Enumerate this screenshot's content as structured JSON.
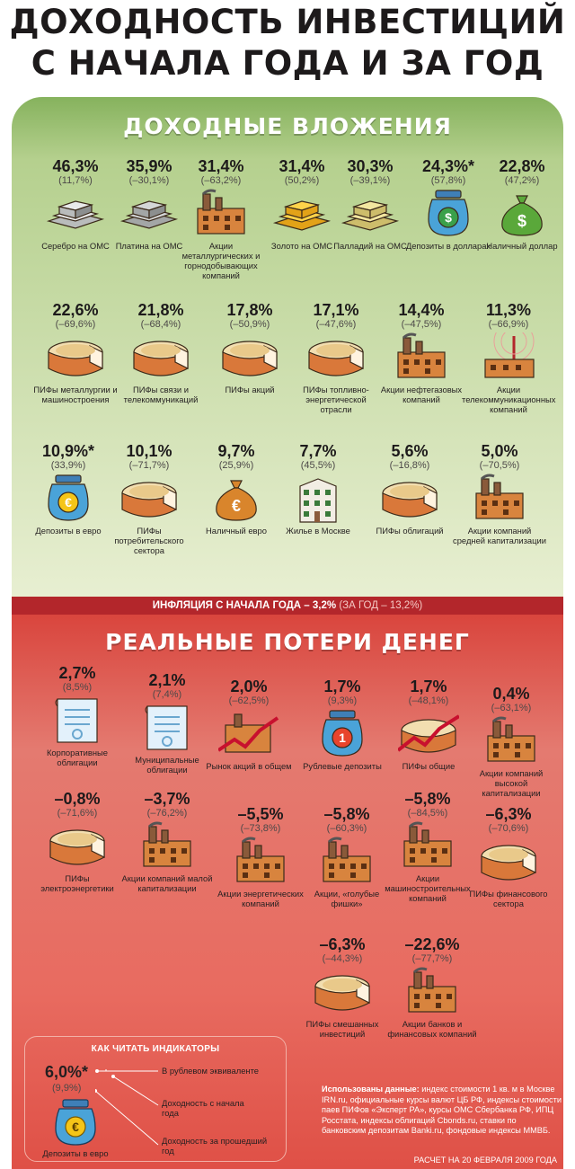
{
  "title_line1": "ДОХОДНОСТЬ ИНВЕСТИЦИЙ",
  "title_line2": "С НАЧАЛА ГОДА И ЗА ГОД",
  "good_section": {
    "title": "ДОХОДНЫЕ ВЛОЖЕНИЯ",
    "items": [
      {
        "pct": "46,3%",
        "year": "(11,7%)",
        "label": "Серебро на ОМС",
        "icon": "silver-bars-icon"
      },
      {
        "pct": "35,9%",
        "year": "(–30,1%)",
        "label": "Платина на ОМС",
        "icon": "platinum-bars-icon"
      },
      {
        "pct": "31,4%",
        "year": "(–63,2%)",
        "label": "Акции металлургических и горнодобывающих компаний",
        "icon": "factory-icon"
      },
      {
        "pct": "31,4%",
        "year": "(50,2%)",
        "label": "Золото на ОМС",
        "icon": "gold-bars-icon"
      },
      {
        "pct": "30,3%",
        "year": "(–39,1%)",
        "label": "Палладий на ОМС",
        "icon": "palladium-bars-icon"
      },
      {
        "pct": "24,3%*",
        "year": "(57,8%)",
        "label": "Депозиты в долларах",
        "icon": "dollar-jar-icon"
      },
      {
        "pct": "22,8%",
        "year": "(47,2%)",
        "label": "Наличный доллар",
        "icon": "dollar-bag-icon"
      },
      {
        "pct": "22,6%",
        "year": "(–69,6%)",
        "label": "ПИФы металлургии и машиностроения",
        "icon": "pie-icon"
      },
      {
        "pct": "21,8%",
        "year": "(–68,4%)",
        "label": "ПИФы связи и телекоммуникаций",
        "icon": "pie-icon"
      },
      {
        "pct": "17,8%",
        "year": "(–50,9%)",
        "label": "ПИФы акций",
        "icon": "pie-icon"
      },
      {
        "pct": "17,1%",
        "year": "(–47,6%)",
        "label": "ПИФы топливно-энергетической отрасли",
        "icon": "pie-icon"
      },
      {
        "pct": "14,4%",
        "year": "(–47,5%)",
        "label": "Акции нефтегазовых компаний",
        "icon": "factory-icon"
      },
      {
        "pct": "11,3%",
        "year": "(–66,9%)",
        "label": "Акции телекоммуникационных компаний",
        "icon": "tower-icon"
      },
      {
        "pct": "10,9%*",
        "year": "(33,9%)",
        "label": "Депозиты в евро",
        "icon": "euro-jar-icon"
      },
      {
        "pct": "10,1%",
        "year": "(–71,7%)",
        "label": "ПИФы потребительского сектора",
        "icon": "pie-icon"
      },
      {
        "pct": "9,7%",
        "year": "(25,9%)",
        "label": "Наличный евро",
        "icon": "euro-bag-icon"
      },
      {
        "pct": "7,7%",
        "year": "(45,5%)",
        "label": "Жилье в Москве",
        "icon": "house-icon"
      },
      {
        "pct": "5,6%",
        "year": "(–16,8%)",
        "label": "ПИФы облигаций",
        "icon": "pie-icon"
      },
      {
        "pct": "5,0%",
        "year": "(–70,5%)",
        "label": "Акции компаний средней капитализации",
        "icon": "factory-icon"
      }
    ]
  },
  "inflation": {
    "main": "ИНФЛЯЦИЯ С НАЧАЛА ГОДА – 3,2%",
    "year": "(ЗА ГОД – 13,2%)"
  },
  "bad_section": {
    "title": "РЕАЛЬНЫЕ ПОТЕРИ ДЕНЕГ",
    "items": [
      {
        "pct": "2,7%",
        "year": "(8,5%)",
        "label": "Корпоративные облигации",
        "icon": "bond-icon"
      },
      {
        "pct": "2,1%",
        "year": "(7,4%)",
        "label": "Муниципальные облигации",
        "icon": "bond-icon"
      },
      {
        "pct": "2,0%",
        "year": "(–62,5%)",
        "label": "Рынок акций в общем",
        "icon": "chart-line-icon"
      },
      {
        "pct": "1,7%",
        "year": "(9,3%)",
        "label": "Рублевые депозиты",
        "icon": "ruble-jar-icon"
      },
      {
        "pct": "1,7%",
        "year": "(–48,1%)",
        "label": "ПИФы общие",
        "icon": "pie-chart-line-icon"
      },
      {
        "pct": "0,4%",
        "year": "(–63,1%)",
        "label": "Акции компаний высокой капитализации",
        "icon": "factory-icon"
      },
      {
        "pct": "–0,8%",
        "year": "(–71,6%)",
        "label": "ПИФы электроэнергетики",
        "icon": "pie-icon"
      },
      {
        "pct": "–3,7%",
        "year": "(–76,2%)",
        "label": "Акции компаний малой капитализации",
        "icon": "factory-icon"
      },
      {
        "pct": "–5,5%",
        "year": "(–73,8%)",
        "label": "Акции энергетических компаний",
        "icon": "factory-icon"
      },
      {
        "pct": "–5,8%",
        "year": "(–60,3%)",
        "label": "Акции, «голубые фишки»",
        "icon": "factory-icon"
      },
      {
        "pct": "–5,8%",
        "year": "(–84,5%)",
        "label": "Акции машиностроительных компаний",
        "icon": "factory-icon"
      },
      {
        "pct": "–6,3%",
        "year": "(–70,6%)",
        "label": "ПИФы финансового сектора",
        "icon": "pie-icon"
      },
      {
        "pct": "–6,3%",
        "year": "(–44,3%)",
        "label": "ПИФы смешанных инвестиций",
        "icon": "pie-icon"
      },
      {
        "pct": "–22,6%",
        "year": "(–77,7%)",
        "label": "Акции банков и финансовых компаний",
        "icon": "factory-icon"
      }
    ]
  },
  "legend": {
    "title": "КАК ЧИТАТЬ ИНДИКАТОРЫ",
    "pct": "6,0%*",
    "year": "(9,9%)",
    "label": "Депозиты в евро",
    "ex1": "В рублевом эквиваленте",
    "ex2": "Доходность с начала года",
    "ex3": "Доходность за прошедший год"
  },
  "sources": {
    "head": "Использованы данные:",
    "text": "индекс стоимости 1 кв. м в Москве IRN.ru, официальные курсы валют ЦБ РФ, индексы стоимости паев ПИФов «Эксперт РА», курсы ОМС Сбербанка РФ, ИПЦ Росстата, индексы облигаций Cbonds.ru, ставки по банковским депозитам Banki.ru, фондовые индексы ММВБ.",
    "calc": "РАСЧЕТ НА 20 ФЕВРАЛЯ 2009 ГОДА"
  },
  "colors": {
    "good_panel": "#b5d08e",
    "bad_panel": "#e47a70",
    "inflation_bar": "#b3262b"
  }
}
